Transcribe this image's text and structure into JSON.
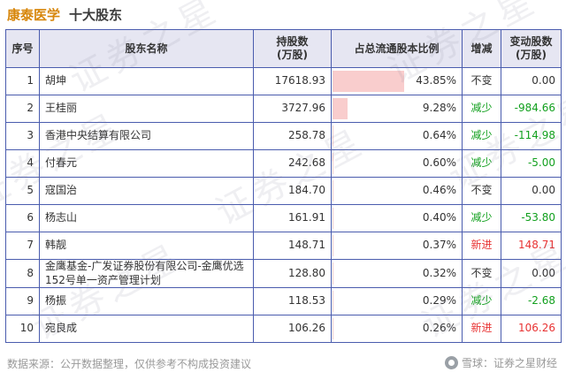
{
  "page": {
    "title_stock": "康泰医学",
    "title_rest": "十大股东"
  },
  "table": {
    "headers": [
      "序号",
      "股东名称",
      "持股数\n(万股)",
      "占总流通股本比例",
      "增减",
      "变动股数\n(万股)"
    ],
    "rows": [
      {
        "no": "1",
        "name": "胡坤",
        "shares": "17618.93",
        "pct_label": "43.85%",
        "pct_value": 43.85,
        "trend": "不变",
        "trend_type": "flat",
        "delta": "0.00",
        "delta_type": "zero"
      },
      {
        "no": "2",
        "name": "王桂丽",
        "shares": "3727.96",
        "pct_label": "9.28%",
        "pct_value": 9.28,
        "trend": "减少",
        "trend_type": "down",
        "delta": "-984.66",
        "delta_type": "neg"
      },
      {
        "no": "3",
        "name": "香港中央结算有限公司",
        "shares": "258.78",
        "pct_label": "0.64%",
        "pct_value": 0.64,
        "trend": "减少",
        "trend_type": "down",
        "delta": "-114.98",
        "delta_type": "neg"
      },
      {
        "no": "4",
        "name": "付春元",
        "shares": "242.68",
        "pct_label": "0.60%",
        "pct_value": 0.6,
        "trend": "减少",
        "trend_type": "down",
        "delta": "-5.00",
        "delta_type": "neg"
      },
      {
        "no": "5",
        "name": "寇国治",
        "shares": "184.70",
        "pct_label": "0.46%",
        "pct_value": 0.46,
        "trend": "不变",
        "trend_type": "flat",
        "delta": "0.00",
        "delta_type": "zero"
      },
      {
        "no": "6",
        "name": "杨志山",
        "shares": "161.91",
        "pct_label": "0.40%",
        "pct_value": 0.4,
        "trend": "减少",
        "trend_type": "down",
        "delta": "-53.80",
        "delta_type": "neg"
      },
      {
        "no": "7",
        "name": "韩靓",
        "shares": "148.71",
        "pct_label": "0.37%",
        "pct_value": 0.37,
        "trend": "新进",
        "trend_type": "new",
        "delta": "148.71",
        "delta_type": "pos"
      },
      {
        "no": "8",
        "name": "金鹰基金-广发证券股份有限公司-金鹰优选152号单一资产管理计划",
        "shares": "128.80",
        "pct_label": "0.32%",
        "pct_value": 0.32,
        "trend": "不变",
        "trend_type": "flat",
        "delta": "0.00",
        "delta_type": "zero"
      },
      {
        "no": "9",
        "name": "杨振",
        "shares": "118.53",
        "pct_label": "0.29%",
        "pct_value": 0.29,
        "trend": "减少",
        "trend_type": "down",
        "delta": "-2.68",
        "delta_type": "neg"
      },
      {
        "no": "10",
        "name": "宛良成",
        "shares": "106.26",
        "pct_label": "0.26%",
        "pct_value": 0.26,
        "trend": "新进",
        "trend_type": "new",
        "delta": "106.26",
        "delta_type": "pos"
      }
    ]
  },
  "footer": {
    "source": "数据来源：公开数据整理，仅供参考不构成投资建议",
    "brand": "雪球：证券之星财经"
  },
  "watermark_text": "证券之星",
  "colors": {
    "title_orange": "#d7860b",
    "border_blue": "#4a5cae",
    "header_bg": "#e6e6f2",
    "bar_pink": "#f9cdcd",
    "decrease_green": "#12a01e",
    "increase_red": "#e83333"
  },
  "chart_data": {
    "type": "table",
    "title": "康泰医学 十大股东",
    "columns": [
      "序号",
      "股东名称",
      "持股数(万股)",
      "占总流通股本比例",
      "增减",
      "变动股数(万股)"
    ],
    "rows": [
      [
        "1",
        "胡坤",
        "17618.93",
        "43.85%",
        "不变",
        "0.00"
      ],
      [
        "2",
        "王桂丽",
        "3727.96",
        "9.28%",
        "减少",
        "-984.66"
      ],
      [
        "3",
        "香港中央结算有限公司",
        "258.78",
        "0.64%",
        "减少",
        "-114.98"
      ],
      [
        "4",
        "付春元",
        "242.68",
        "0.60%",
        "减少",
        "-5.00"
      ],
      [
        "5",
        "寇国治",
        "184.70",
        "0.46%",
        "不变",
        "0.00"
      ],
      [
        "6",
        "杨志山",
        "161.91",
        "0.40%",
        "减少",
        "-53.80"
      ],
      [
        "7",
        "韩靓",
        "148.71",
        "0.37%",
        "新进",
        "148.71"
      ],
      [
        "8",
        "金鹰基金-广发证券股份有限公司-金鹰优选152号单一资产管理计划",
        "128.80",
        "0.32%",
        "不变",
        "0.00"
      ],
      [
        "9",
        "杨振",
        "118.53",
        "0.29%",
        "减少",
        "-2.68"
      ],
      [
        "10",
        "宛良成",
        "106.26",
        "0.26%",
        "新进",
        "106.26"
      ]
    ],
    "notes": "占总流通股本比例 column shows pink data bars proportional to percentage; max 43.85%"
  }
}
